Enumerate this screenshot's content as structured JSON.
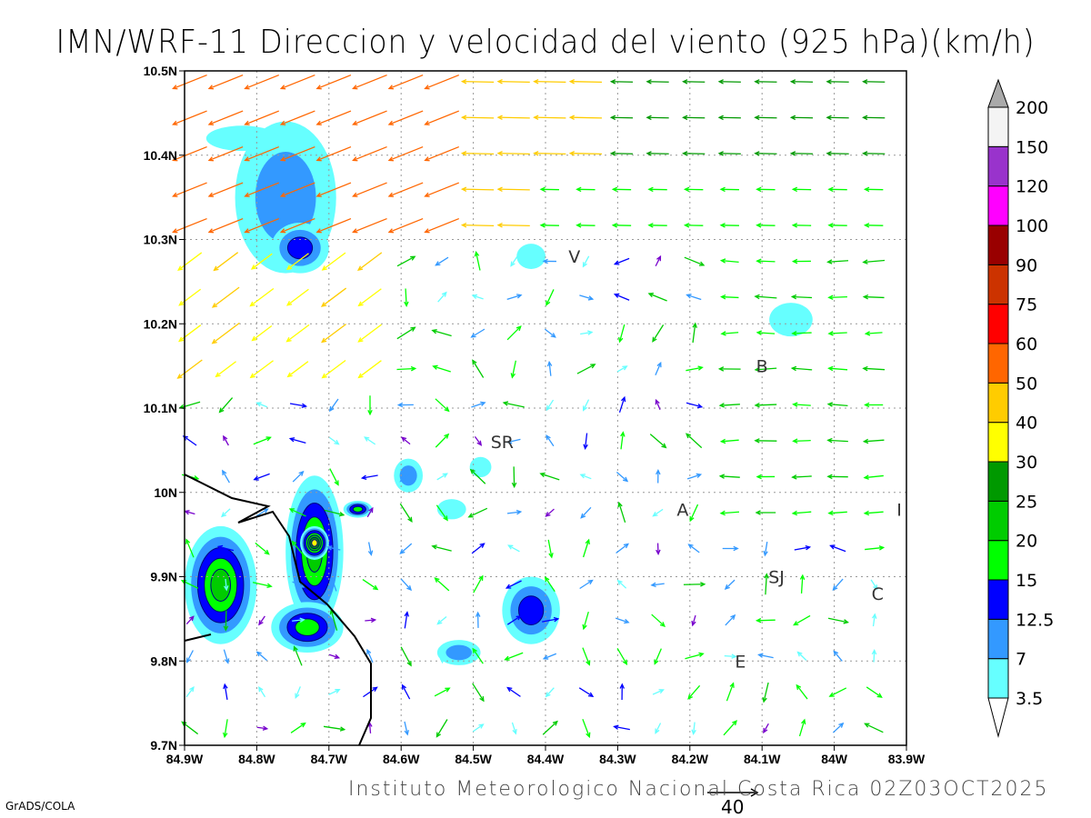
{
  "title": "IMN/WRF-11 Direccion y velocidad del viento (925 hPa)(km/h)",
  "footer": "Instituto Meteorologico Nacional Costa Rica 02Z03OCT2025",
  "credit": "GrADS/COLA",
  "reference_vector": {
    "value": "40"
  },
  "axes": {
    "lon_ticks": [
      "84.9W",
      "84.8W",
      "84.7W",
      "84.6W",
      "84.5W",
      "84.4W",
      "84.3W",
      "84.2W",
      "84.1W",
      "84W",
      "83.9W"
    ],
    "lat_ticks": [
      "9.7N",
      "9.8N",
      "9.9N",
      "10N",
      "10.1N",
      "10.2N",
      "10.3N",
      "10.4N",
      "10.5N"
    ],
    "lon_range": [
      -84.9,
      -83.9
    ],
    "lat_range": [
      9.7,
      10.5
    ]
  },
  "colorbar": {
    "labels": [
      "3.5",
      "7",
      "12.5",
      "15",
      "20",
      "25",
      "30",
      "40",
      "50",
      "60",
      "75",
      "90",
      "100",
      "120",
      "150",
      "200"
    ],
    "colors": [
      "#66ffff",
      "#3399ff",
      "#0000ff",
      "#00ff00",
      "#00cc00",
      "#009900",
      "#ffff00",
      "#ffcc00",
      "#ff6600",
      "#ff0000",
      "#cc3300",
      "#990000",
      "#ff00ff",
      "#9933cc",
      "#f4f4f4"
    ],
    "under_color": "#ffffff",
    "over_color": "#aaaaaa"
  },
  "stations": [
    {
      "label": "V",
      "lon": -84.36,
      "lat": 10.28
    },
    {
      "label": "B",
      "lon": -84.1,
      "lat": 10.15
    },
    {
      "label": "SR",
      "lon": -84.46,
      "lat": 10.06
    },
    {
      "label": "A",
      "lon": -84.21,
      "lat": 9.98
    },
    {
      "label": "I",
      "lon": -83.91,
      "lat": 9.98
    },
    {
      "label": "SJ",
      "lon": -84.08,
      "lat": 9.9
    },
    {
      "label": "C",
      "lon": -83.94,
      "lat": 9.88
    },
    {
      "label": "E",
      "lon": -84.13,
      "lat": 9.8
    }
  ],
  "shaded_areas": [
    {
      "lon": -84.76,
      "lat": 10.35,
      "rlon": 0.07,
      "rlat": 0.09,
      "level": 2
    },
    {
      "lon": -84.74,
      "lat": 10.29,
      "rlon": 0.04,
      "rlat": 0.03,
      "level": 3
    },
    {
      "lon": -84.82,
      "lat": 10.42,
      "rlon": 0.05,
      "rlat": 0.015,
      "level": 1
    },
    {
      "lon": -84.06,
      "lat": 10.205,
      "rlon": 0.03,
      "rlat": 0.02,
      "level": 1
    },
    {
      "lon": -84.42,
      "lat": 10.28,
      "rlon": 0.02,
      "rlat": 0.015,
      "level": 1
    },
    {
      "lon": -84.85,
      "lat": 9.89,
      "rlon": 0.05,
      "rlat": 0.07,
      "level": 5
    },
    {
      "lon": -84.72,
      "lat": 9.93,
      "rlon": 0.04,
      "rlat": 0.09,
      "level": 5
    },
    {
      "lon": -84.72,
      "lat": 9.94,
      "rlon": 0.02,
      "rlat": 0.02,
      "level": 7
    },
    {
      "lon": -84.73,
      "lat": 9.84,
      "rlon": 0.05,
      "rlat": 0.03,
      "level": 4
    },
    {
      "lon": -84.66,
      "lat": 9.98,
      "rlon": 0.02,
      "rlat": 0.01,
      "level": 4
    },
    {
      "lon": -84.59,
      "lat": 10.02,
      "rlon": 0.02,
      "rlat": 0.02,
      "level": 2
    },
    {
      "lon": -84.42,
      "lat": 9.86,
      "rlon": 0.04,
      "rlat": 0.04,
      "level": 3
    },
    {
      "lon": -84.52,
      "lat": 9.81,
      "rlon": 0.03,
      "rlat": 0.015,
      "level": 2
    },
    {
      "lon": -84.53,
      "lat": 9.98,
      "rlon": 0.02,
      "rlat": 0.012,
      "level": 1
    },
    {
      "lon": -84.49,
      "lat": 10.03,
      "rlon": 0.015,
      "rlat": 0.012,
      "level": 1
    }
  ]
}
